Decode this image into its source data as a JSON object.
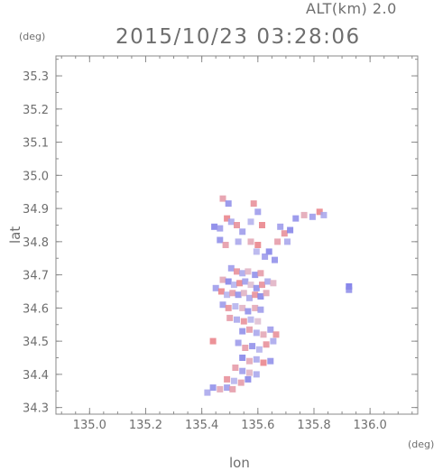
{
  "header": {
    "altitude_label": "ALT(km) 2.0",
    "timestamp": "2015/10/23 03:28:06"
  },
  "chart_data": {
    "type": "heatmap",
    "title": "2015/10/23 03:28:06",
    "subtitle": "ALT(km) 2.0",
    "xlabel": "lon",
    "ylabel": "lat",
    "x_unit": "(deg)",
    "y_unit": "(deg)",
    "xlim": [
      134.88,
      136.17
    ],
    "ylim": [
      34.28,
      35.36
    ],
    "x_ticks": [
      135.0,
      135.2,
      135.4,
      135.6,
      135.8,
      136.0
    ],
    "x_tick_labels": [
      "135.0",
      "135.2",
      "135.4",
      "135.6",
      "135.8",
      "136.0"
    ],
    "y_ticks": [
      34.3,
      34.4,
      34.5,
      34.6,
      34.7,
      34.8,
      34.9,
      35.0,
      35.1,
      35.2,
      35.3
    ],
    "y_tick_labels": [
      "34.3",
      "34.4",
      "34.5",
      "34.6",
      "34.7",
      "34.8",
      "34.9",
      "35.0",
      "35.1",
      "35.2",
      "35.3"
    ],
    "grid": false,
    "colors": {
      "positive": "#f05a5a",
      "negative": "#5a5ae6",
      "neutral": "#d8d4ee"
    },
    "cells": [
      {
        "lon": 135.475,
        "lat": 34.93,
        "v": 0.5
      },
      {
        "lon": 135.495,
        "lat": 34.915,
        "v": -0.6
      },
      {
        "lon": 135.49,
        "lat": 34.87,
        "v": 0.7
      },
      {
        "lon": 135.505,
        "lat": 34.86,
        "v": -0.4
      },
      {
        "lon": 135.445,
        "lat": 34.845,
        "v": -0.7
      },
      {
        "lon": 135.465,
        "lat": 34.84,
        "v": -0.5
      },
      {
        "lon": 135.525,
        "lat": 34.85,
        "v": 0.6
      },
      {
        "lon": 135.545,
        "lat": 34.83,
        "v": -0.5
      },
      {
        "lon": 135.585,
        "lat": 34.915,
        "v": 0.6
      },
      {
        "lon": 135.6,
        "lat": 34.89,
        "v": -0.5
      },
      {
        "lon": 135.575,
        "lat": 34.86,
        "v": -0.3
      },
      {
        "lon": 135.615,
        "lat": 34.85,
        "v": 0.7
      },
      {
        "lon": 135.465,
        "lat": 34.805,
        "v": -0.6
      },
      {
        "lon": 135.485,
        "lat": 34.79,
        "v": 0.5
      },
      {
        "lon": 135.53,
        "lat": 34.8,
        "v": -0.4
      },
      {
        "lon": 135.575,
        "lat": 34.8,
        "v": 0.4
      },
      {
        "lon": 135.6,
        "lat": 34.79,
        "v": 0.7
      },
      {
        "lon": 135.595,
        "lat": 34.77,
        "v": -0.3
      },
      {
        "lon": 135.64,
        "lat": 34.77,
        "v": -0.7
      },
      {
        "lon": 135.625,
        "lat": 34.755,
        "v": -0.5
      },
      {
        "lon": 135.66,
        "lat": 34.745,
        "v": -0.6
      },
      {
        "lon": 135.68,
        "lat": 34.845,
        "v": -0.5
      },
      {
        "lon": 135.695,
        "lat": 34.825,
        "v": 0.6
      },
      {
        "lon": 135.715,
        "lat": 34.835,
        "v": -0.7
      },
      {
        "lon": 135.705,
        "lat": 34.8,
        "v": -0.4
      },
      {
        "lon": 135.67,
        "lat": 34.8,
        "v": 0.5
      },
      {
        "lon": 135.735,
        "lat": 34.87,
        "v": -0.6
      },
      {
        "lon": 135.765,
        "lat": 34.88,
        "v": 0.4
      },
      {
        "lon": 135.795,
        "lat": 34.875,
        "v": -0.5
      },
      {
        "lon": 135.82,
        "lat": 34.89,
        "v": 0.7
      },
      {
        "lon": 135.835,
        "lat": 34.88,
        "v": -0.4
      },
      {
        "lon": 135.505,
        "lat": 34.72,
        "v": -0.5
      },
      {
        "lon": 135.525,
        "lat": 34.71,
        "v": 0.6
      },
      {
        "lon": 135.545,
        "lat": 34.705,
        "v": -0.4
      },
      {
        "lon": 135.565,
        "lat": 34.71,
        "v": 0.3
      },
      {
        "lon": 135.59,
        "lat": 34.7,
        "v": -0.6
      },
      {
        "lon": 135.61,
        "lat": 34.705,
        "v": 0.5
      },
      {
        "lon": 135.475,
        "lat": 34.685,
        "v": 0.4
      },
      {
        "lon": 135.495,
        "lat": 34.68,
        "v": -0.7
      },
      {
        "lon": 135.515,
        "lat": 34.67,
        "v": -0.3
      },
      {
        "lon": 135.535,
        "lat": 34.675,
        "v": 0.7
      },
      {
        "lon": 135.555,
        "lat": 34.68,
        "v": -0.5
      },
      {
        "lon": 135.575,
        "lat": 34.67,
        "v": 0.2
      },
      {
        "lon": 135.595,
        "lat": 34.66,
        "v": -0.6
      },
      {
        "lon": 135.615,
        "lat": 34.67,
        "v": 0.6
      },
      {
        "lon": 135.635,
        "lat": 34.68,
        "v": -0.4
      },
      {
        "lon": 135.655,
        "lat": 34.675,
        "v": 0.3
      },
      {
        "lon": 135.45,
        "lat": 34.66,
        "v": -0.5
      },
      {
        "lon": 135.47,
        "lat": 34.65,
        "v": 0.7
      },
      {
        "lon": 135.49,
        "lat": 34.64,
        "v": -0.3
      },
      {
        "lon": 135.51,
        "lat": 34.645,
        "v": 0.5
      },
      {
        "lon": 135.53,
        "lat": 34.64,
        "v": -0.6
      },
      {
        "lon": 135.55,
        "lat": 34.645,
        "v": 0.3
      },
      {
        "lon": 135.57,
        "lat": 34.63,
        "v": -0.4
      },
      {
        "lon": 135.59,
        "lat": 34.64,
        "v": 0.6
      },
      {
        "lon": 135.61,
        "lat": 34.635,
        "v": -0.7
      },
      {
        "lon": 135.63,
        "lat": 34.645,
        "v": 0.4
      },
      {
        "lon": 135.475,
        "lat": 34.61,
        "v": -0.5
      },
      {
        "lon": 135.495,
        "lat": 34.6,
        "v": 0.6
      },
      {
        "lon": 135.52,
        "lat": 34.605,
        "v": -0.3
      },
      {
        "lon": 135.545,
        "lat": 34.6,
        "v": 0.3
      },
      {
        "lon": 135.565,
        "lat": 34.59,
        "v": -0.6
      },
      {
        "lon": 135.59,
        "lat": 34.6,
        "v": 0.4
      },
      {
        "lon": 135.61,
        "lat": 34.595,
        "v": -0.5
      },
      {
        "lon": 135.5,
        "lat": 34.57,
        "v": 0.5
      },
      {
        "lon": 135.525,
        "lat": 34.565,
        "v": -0.4
      },
      {
        "lon": 135.55,
        "lat": 34.56,
        "v": 0.6
      },
      {
        "lon": 135.575,
        "lat": 34.565,
        "v": -0.3
      },
      {
        "lon": 135.6,
        "lat": 34.56,
        "v": 0.2
      },
      {
        "lon": 135.545,
        "lat": 34.53,
        "v": -0.6
      },
      {
        "lon": 135.57,
        "lat": 34.535,
        "v": 0.5
      },
      {
        "lon": 135.595,
        "lat": 34.525,
        "v": -0.4
      },
      {
        "lon": 135.62,
        "lat": 34.52,
        "v": 0.4
      },
      {
        "lon": 135.645,
        "lat": 34.535,
        "v": -0.5
      },
      {
        "lon": 135.665,
        "lat": 34.52,
        "v": 0.6
      },
      {
        "lon": 135.44,
        "lat": 34.5,
        "v": 0.7
      },
      {
        "lon": 135.53,
        "lat": 34.495,
        "v": -0.5
      },
      {
        "lon": 135.555,
        "lat": 34.48,
        "v": 0.5
      },
      {
        "lon": 135.58,
        "lat": 34.485,
        "v": -0.6
      },
      {
        "lon": 135.605,
        "lat": 34.475,
        "v": -0.3
      },
      {
        "lon": 135.63,
        "lat": 34.49,
        "v": 0.6
      },
      {
        "lon": 135.655,
        "lat": 34.5,
        "v": -0.4
      },
      {
        "lon": 135.545,
        "lat": 34.45,
        "v": -0.7
      },
      {
        "lon": 135.57,
        "lat": 34.44,
        "v": 0.4
      },
      {
        "lon": 135.595,
        "lat": 34.445,
        "v": -0.4
      },
      {
        "lon": 135.62,
        "lat": 34.435,
        "v": 0.7
      },
      {
        "lon": 135.645,
        "lat": 34.44,
        "v": -0.6
      },
      {
        "lon": 135.52,
        "lat": 34.42,
        "v": 0.5
      },
      {
        "lon": 135.545,
        "lat": 34.41,
        "v": -0.5
      },
      {
        "lon": 135.57,
        "lat": 34.405,
        "v": 0.3
      },
      {
        "lon": 135.595,
        "lat": 34.4,
        "v": -0.4
      },
      {
        "lon": 135.49,
        "lat": 34.385,
        "v": 0.6
      },
      {
        "lon": 135.515,
        "lat": 34.38,
        "v": -0.3
      },
      {
        "lon": 135.54,
        "lat": 34.375,
        "v": 0.5
      },
      {
        "lon": 135.565,
        "lat": 34.385,
        "v": -0.7
      },
      {
        "lon": 135.44,
        "lat": 34.36,
        "v": -0.6
      },
      {
        "lon": 135.465,
        "lat": 34.355,
        "v": 0.4
      },
      {
        "lon": 135.49,
        "lat": 34.36,
        "v": -0.5
      },
      {
        "lon": 135.51,
        "lat": 34.355,
        "v": 0.5
      },
      {
        "lon": 135.42,
        "lat": 34.345,
        "v": -0.4
      },
      {
        "lon": 135.925,
        "lat": 34.665,
        "v": -0.8
      },
      {
        "lon": 135.925,
        "lat": 34.655,
        "v": -0.6
      }
    ]
  }
}
